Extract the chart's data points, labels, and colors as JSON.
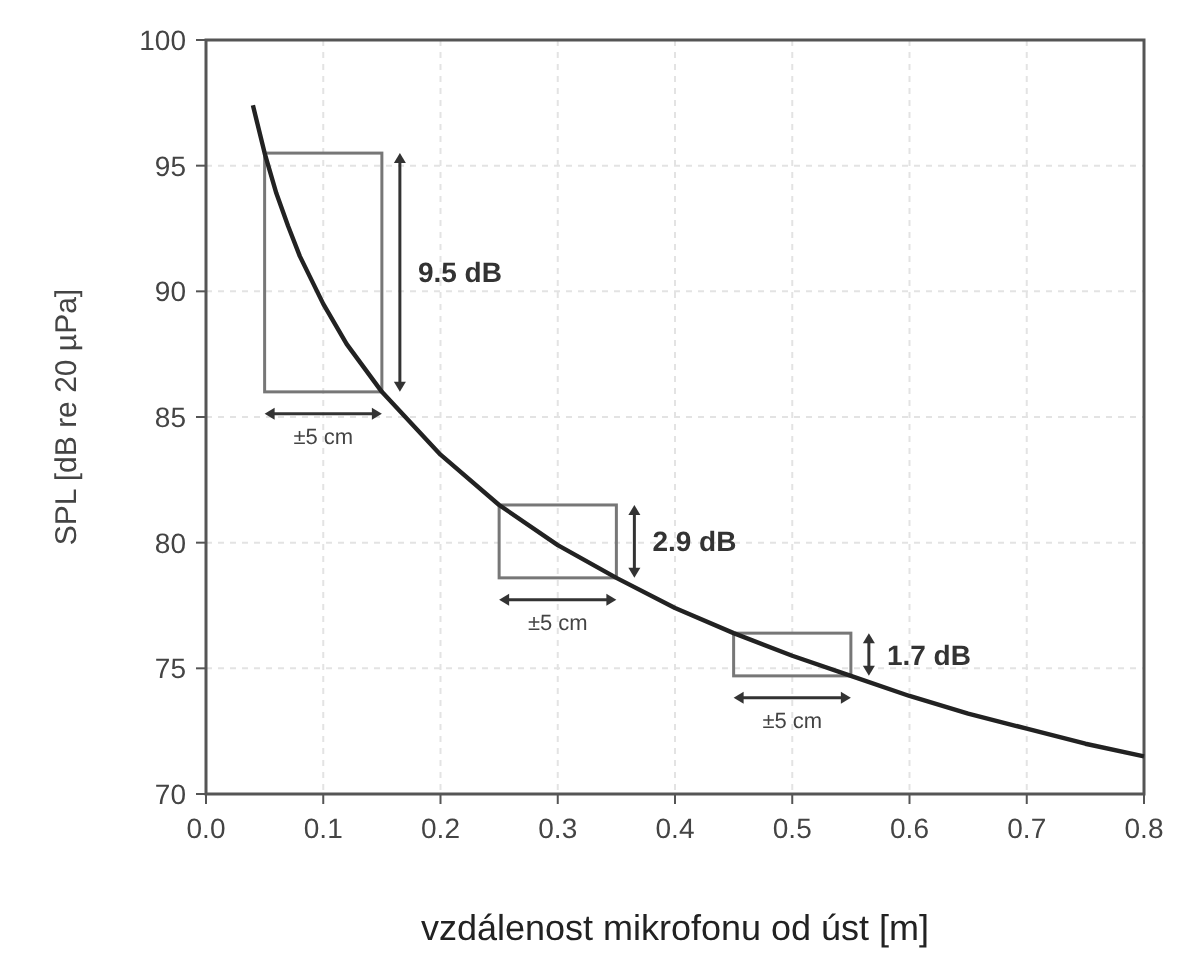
{
  "chart_data": {
    "type": "line",
    "xlabel": "vzdálenost mikrofonu od úst [m]",
    "ylabel": "SPL [dB re 20 µPa]",
    "x": [
      0.04,
      0.05,
      0.06,
      0.07,
      0.08,
      0.1,
      0.12,
      0.15,
      0.2,
      0.25,
      0.3,
      0.35,
      0.4,
      0.45,
      0.5,
      0.55,
      0.6,
      0.65,
      0.7,
      0.75,
      0.8
    ],
    "series": [
      {
        "color": "#222222",
        "values": [
          97.4,
          95.5,
          93.9,
          92.6,
          91.4,
          89.5,
          87.9,
          86.0,
          83.5,
          81.5,
          79.9,
          78.6,
          77.4,
          76.4,
          75.5,
          74.7,
          73.9,
          73.2,
          72.6,
          72.0,
          71.5
        ]
      }
    ],
    "xlim": [
      0,
      0.8
    ],
    "xticks": [
      {
        "value": 0,
        "label": "0.0"
      },
      0.1,
      0.2,
      0.3,
      0.4,
      0.5,
      0.6,
      0.7,
      0.8
    ],
    "ylim": [
      70,
      100
    ],
    "yticks": [
      70,
      75,
      80,
      85,
      90,
      95,
      100
    ],
    "grid": true,
    "marker": "none",
    "line_style": "solid",
    "annotations": [
      "9.5 dB",
      "±5 cm",
      "2.9 dB",
      "±5 cm",
      "1.7 dB",
      "±5 cm"
    ]
  }
}
